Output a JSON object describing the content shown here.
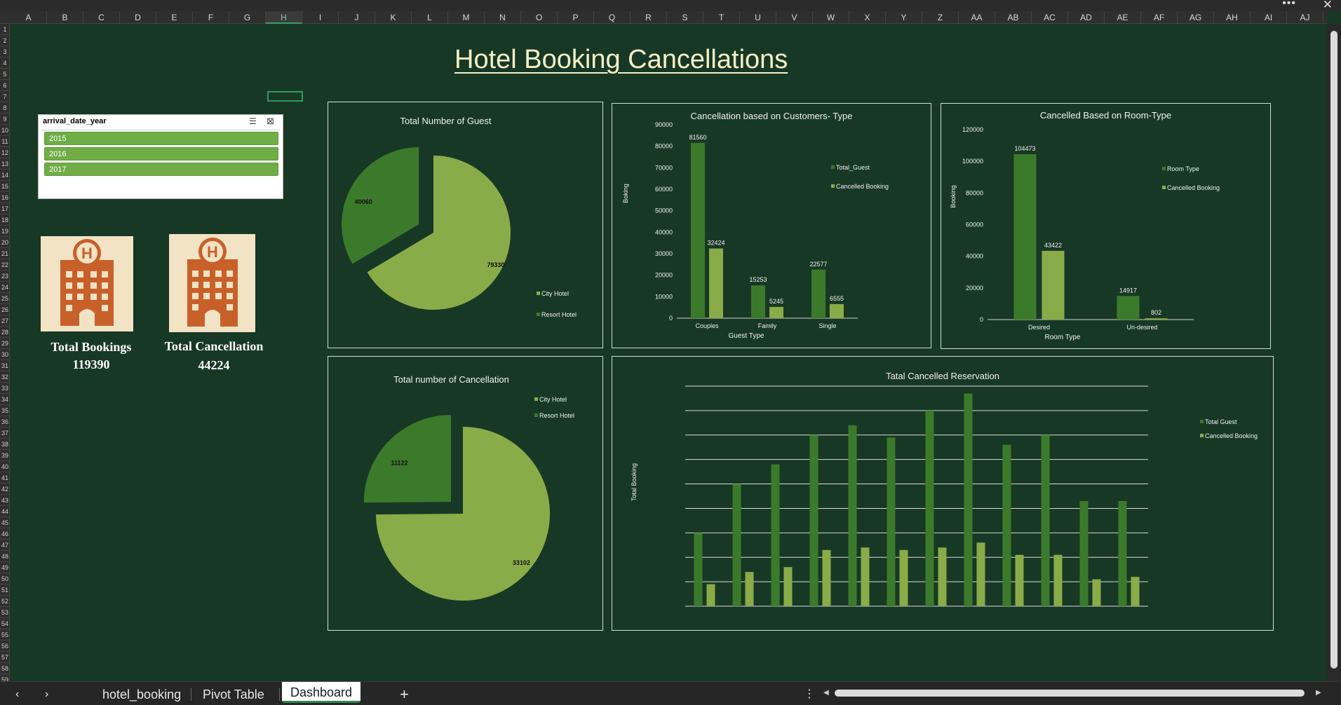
{
  "title": "Hotel Booking Cancellations",
  "columns": [
    "A",
    "B",
    "C",
    "D",
    "E",
    "F",
    "G",
    "H",
    "I",
    "J",
    "K",
    "L",
    "M",
    "N",
    "O",
    "P",
    "Q",
    "R",
    "S",
    "T",
    "U",
    "V",
    "W",
    "X",
    "Y",
    "Z",
    "AA",
    "AB",
    "AC",
    "AD",
    "AE",
    "AF",
    "AG",
    "AH",
    "AI",
    "AJ"
  ],
  "selected_column": "H",
  "rows": [
    "1",
    "2",
    "3",
    "4",
    "5",
    "6",
    "7",
    "8",
    "9",
    "10",
    "11",
    "12",
    "13",
    "14",
    "15",
    "16",
    "17",
    "18",
    "19",
    "20",
    "21",
    "22",
    "23",
    "24",
    "25",
    "26",
    "27",
    "28",
    "29",
    "30",
    "31",
    "32",
    "33",
    "34",
    "35",
    "36",
    "37",
    "38",
    "39",
    "40",
    "41",
    "42",
    "43",
    "44",
    "45",
    "46",
    "47",
    "48",
    "49",
    "50",
    "51",
    "52",
    "53",
    "54",
    "55",
    "56",
    "57",
    "58",
    "59"
  ],
  "slicer": {
    "header": "arrival_date_year",
    "items": [
      "2015",
      "2016",
      "2017"
    ]
  },
  "kpis": {
    "bookings_label": "Total Bookings",
    "bookings_value": "119390",
    "cancellation_label": "Total Cancellation",
    "cancellation_value": "44224"
  },
  "colors": {
    "dark_green": "#3b7a2a",
    "light_green": "#8aac48",
    "background": "#183826",
    "title": "#f3f1c6"
  },
  "tabs": {
    "t1": "hotel_booking",
    "t2": "Pivot Table",
    "t3": "Dashboard",
    "add": "+"
  },
  "chart_data": [
    {
      "type": "pie",
      "title": "Total Number of Guest",
      "slices": [
        {
          "name": "City Hotel",
          "value": 79330
        },
        {
          "name": "Resort Hotel",
          "value": 40060
        }
      ],
      "legend": [
        "City Hotel",
        "Resort Hotel"
      ]
    },
    {
      "type": "bar",
      "title": "Cancellation based on Customers- Type",
      "categories": [
        "Couples",
        "Family",
        "Single"
      ],
      "series": [
        {
          "name": "Total_Guest",
          "values": [
            81560,
            15253,
            22577
          ]
        },
        {
          "name": "Cancelled Booking",
          "values": [
            32424,
            5245,
            6555
          ]
        }
      ],
      "xlabel": "Guest Type",
      "ylabel": "Boking",
      "yticks": [
        "90000",
        "80000",
        "70000",
        "60000",
        "50000",
        "40000",
        "30000",
        "20000",
        "10000",
        "0"
      ],
      "ylim": [
        0,
        90000
      ]
    },
    {
      "type": "bar",
      "title": "Cancelled Based on Room-Type",
      "categories": [
        "Desired",
        "Un-desired"
      ],
      "series": [
        {
          "name": "Room Type",
          "values": [
            104473,
            14917
          ]
        },
        {
          "name": "Cancelled Booking",
          "values": [
            43422,
            802
          ]
        }
      ],
      "xlabel": "Room Type",
      "ylabel": "Booking",
      "yticks": [
        "120000",
        "100000",
        "80000",
        "60000",
        "40000",
        "20000",
        "0"
      ],
      "ylim": [
        0,
        120000
      ]
    },
    {
      "type": "pie",
      "title": "Total number of Cancellation",
      "slices": [
        {
          "name": "City Hotel",
          "value": 33102
        },
        {
          "name": "Resort Hotel",
          "value": 11122
        }
      ],
      "legend": [
        "City Hotel",
        "Resort Hotel"
      ]
    },
    {
      "type": "bar",
      "title": "Tatal Cancelled Reservation",
      "ylabel": "Total Booking",
      "series": [
        {
          "name": "Total Guest",
          "values": [
            30,
            50,
            58,
            70,
            74,
            69,
            80,
            87,
            66,
            70,
            43,
            43
          ]
        },
        {
          "name": "Cancelled Booking",
          "values": [
            9,
            14,
            16,
            23,
            24,
            23,
            24,
            26,
            21,
            21,
            11,
            12
          ]
        }
      ],
      "ylim": [
        0,
        90
      ],
      "gridlines": 9
    }
  ]
}
